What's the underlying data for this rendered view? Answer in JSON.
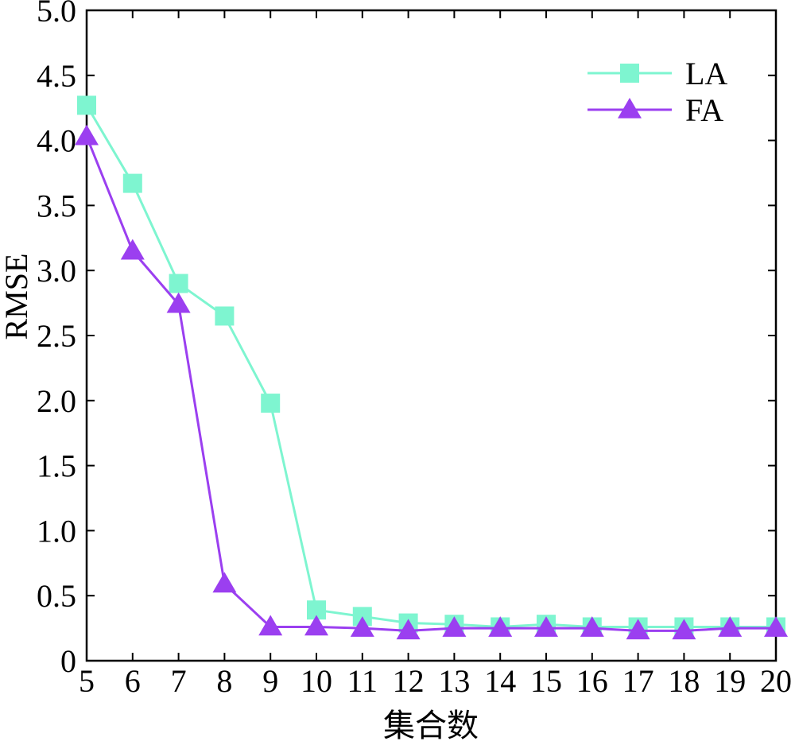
{
  "chart_data": {
    "type": "line",
    "title": "",
    "xlabel": "集合数",
    "ylabel": "RMSE",
    "x": [
      5,
      6,
      7,
      8,
      9,
      10,
      11,
      12,
      13,
      14,
      15,
      16,
      17,
      18,
      19,
      20
    ],
    "xlim": [
      5,
      20
    ],
    "ylim": [
      0,
      5.0
    ],
    "x_ticks": [
      "5",
      "6",
      "7",
      "8",
      "9",
      "10",
      "11",
      "12",
      "13",
      "14",
      "15",
      "16",
      "17",
      "18",
      "19",
      "20"
    ],
    "y_tick_values": [
      0,
      0.5,
      1.0,
      1.5,
      2.0,
      2.5,
      3.0,
      3.5,
      4.0,
      4.5,
      5.0
    ],
    "y_ticks": [
      "0",
      "0.5",
      "1.0",
      "1.5",
      "2.0",
      "2.5",
      "3.0",
      "3.5",
      "4.0",
      "4.5",
      "5.0"
    ],
    "grid": false,
    "legend_position": "top-right",
    "series": [
      {
        "name": "LA",
        "marker": "square",
        "color": "#7ef5d0",
        "values": [
          4.27,
          3.67,
          2.9,
          2.65,
          1.98,
          0.39,
          0.34,
          0.29,
          0.28,
          0.26,
          0.28,
          0.26,
          0.26,
          0.26,
          0.26,
          0.26
        ]
      },
      {
        "name": "FA",
        "marker": "triangle",
        "color": "#9b3ff0",
        "values": [
          4.03,
          3.15,
          2.74,
          0.59,
          0.26,
          0.26,
          0.25,
          0.23,
          0.25,
          0.25,
          0.25,
          0.25,
          0.23,
          0.23,
          0.25,
          0.25
        ]
      }
    ]
  }
}
